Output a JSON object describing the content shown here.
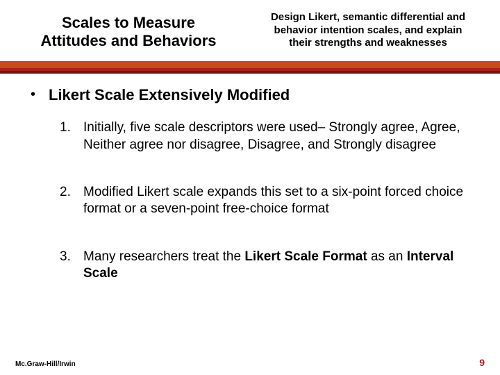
{
  "header": {
    "title_line1": "Scales to Measure",
    "title_line2": "Attitudes and Behaviors",
    "subtitle": "Design Likert, semantic differential and behavior intention scales, and explain their strengths and weaknesses"
  },
  "colors": {
    "bar_orange": "#c84a1f",
    "bar_red": "#b01e1e",
    "bar_maroon": "#6d1414",
    "page_number_color": "#b01e1e",
    "text_color": "#000000",
    "background": "#ffffff"
  },
  "section": {
    "bullet": "•",
    "title": "Likert Scale Extensively Modified"
  },
  "points": [
    {
      "num": "1.",
      "parts": [
        {
          "text": "Initially, five scale descriptors were used– Strongly agree, Agree, Neither agree nor disagree, Disagree, and Strongly disagree",
          "bold": false
        }
      ]
    },
    {
      "num": "2.",
      "parts": [
        {
          "text": "Modified Likert scale expands this set to a six-point forced choice format or a seven-point free-choice format",
          "bold": false
        }
      ]
    },
    {
      "num": "3.",
      "parts": [
        {
          "text": "Many researchers treat the ",
          "bold": false
        },
        {
          "text": "Likert Scale Format",
          "bold": true
        },
        {
          "text": " as an ",
          "bold": false
        },
        {
          "text": "Interval Scale",
          "bold": true
        }
      ]
    }
  ],
  "footer": {
    "publisher": "Mc.Graw-Hill/Irwin",
    "page_number": "9"
  }
}
